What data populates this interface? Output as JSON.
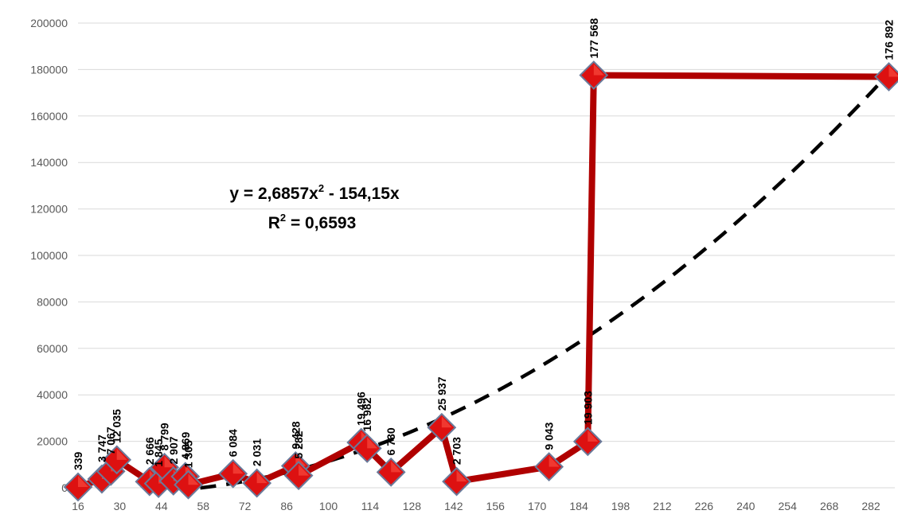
{
  "chart_data": {
    "type": "line",
    "title": "",
    "xlabel": "",
    "ylabel": "",
    "ylim": [
      0,
      200000
    ],
    "xlim": [
      16,
      290
    ],
    "y_ticks": [
      "0",
      "20000",
      "40000",
      "60000",
      "80000",
      "100000",
      "120000",
      "140000",
      "160000",
      "180000",
      "200000"
    ],
    "x_ticks": [
      "16",
      "30",
      "44",
      "58",
      "72",
      "86",
      "100",
      "114",
      "128",
      "142",
      "156",
      "170",
      "184",
      "198",
      "212",
      "226",
      "240",
      "254",
      "268",
      "282"
    ],
    "grid": "horizontal",
    "legend": "none",
    "series": [
      {
        "color": "#b00000",
        "marker": "diamond",
        "points": [
          {
            "x": 16,
            "y": 339,
            "label": "339"
          },
          {
            "x": 24,
            "y": 3747,
            "label": "3 747"
          },
          {
            "x": 27,
            "y": 7067,
            "label": "7 067"
          },
          {
            "x": 29,
            "y": 12035,
            "label": "12 035"
          },
          {
            "x": 40,
            "y": 2666,
            "label": "2 666"
          },
          {
            "x": 43,
            "y": 1845,
            "label": "1 845"
          },
          {
            "x": 45,
            "y": 8799,
            "label": "8 799"
          },
          {
            "x": 48,
            "y": 2907,
            "label": "2 907"
          },
          {
            "x": 52,
            "y": 4869,
            "label": "4 869"
          },
          {
            "x": 53,
            "y": 1305,
            "label": "1 305"
          },
          {
            "x": 68,
            "y": 6084,
            "label": "6 084"
          },
          {
            "x": 76,
            "y": 2031,
            "label": "2 031"
          },
          {
            "x": 89,
            "y": 9428,
            "label": "9 428"
          },
          {
            "x": 90,
            "y": 5282,
            "label": "5 282"
          },
          {
            "x": 111,
            "y": 19496,
            "label": "19 496"
          },
          {
            "x": 113,
            "y": 16982,
            "label": "16 982"
          },
          {
            "x": 121,
            "y": 6730,
            "label": "6 730"
          },
          {
            "x": 138,
            "y": 25937,
            "label": "25 937"
          },
          {
            "x": 143,
            "y": 2703,
            "label": "2 703"
          },
          {
            "x": 174,
            "y": 9043,
            "label": "9 043"
          },
          {
            "x": 187,
            "y": 19903,
            "label": "19 903"
          },
          {
            "x": 189,
            "y": 177568,
            "label": "177 568"
          },
          {
            "x": 288,
            "y": 176892,
            "label": "176 892"
          }
        ]
      }
    ],
    "trendline": {
      "type": "polynomial",
      "style": "dashed",
      "color": "#000000",
      "a": 2.6857,
      "b": -154.15,
      "x_from": 57,
      "x_to": 288,
      "equation": "y = 2,6857x",
      "equation_sup": "2",
      "equation_tail": " - 154,15x",
      "r2_prefix": "R",
      "r2_sup": "2",
      "r2_tail": " = 0,6593"
    }
  }
}
